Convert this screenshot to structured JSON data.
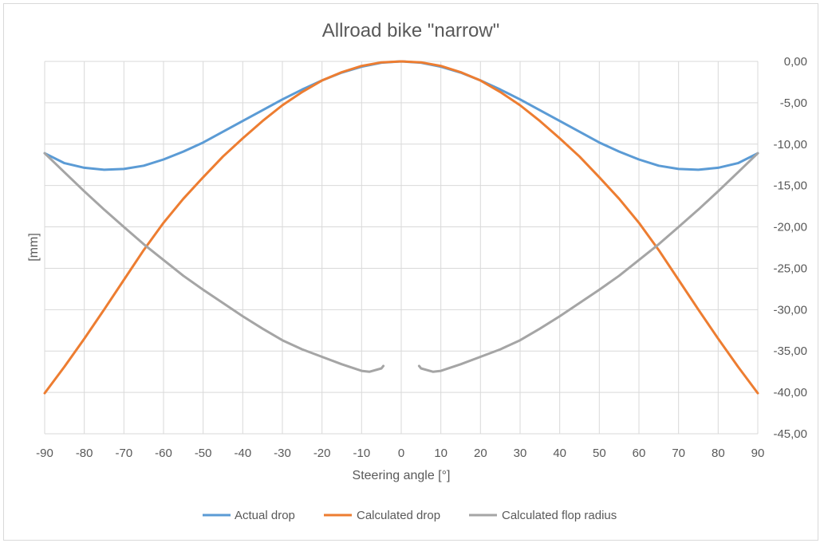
{
  "chart_data": {
    "type": "line",
    "title": "Allroad bike \"narrow\"",
    "xlabel": "Steering angle [°]",
    "ylabel": "[mm]",
    "xlim": [
      -90,
      90
    ],
    "ylim": [
      -45,
      0
    ],
    "x_ticks": [
      "-90",
      "-80",
      "-70",
      "-60",
      "-50",
      "-40",
      "-30",
      "-20",
      "-10",
      "0",
      "10",
      "20",
      "30",
      "40",
      "50",
      "60",
      "70",
      "80",
      "90"
    ],
    "y_ticks": [
      "0,00",
      "-5,00",
      "-10,00",
      "-15,00",
      "-20,00",
      "-25,00",
      "-30,00",
      "-35,00",
      "-40,00",
      "-45,00"
    ],
    "y_axis_side": "right",
    "grid": true,
    "legend_position": "bottom",
    "series": [
      {
        "name": "Actual drop",
        "color": "#5b9bd5",
        "points": [
          [
            -90,
            -11.1
          ],
          [
            -85,
            -12.3
          ],
          [
            -80,
            -12.85
          ],
          [
            -75,
            -13.1
          ],
          [
            -70,
            -13.0
          ],
          [
            -65,
            -12.6
          ],
          [
            -60,
            -11.85
          ],
          [
            -55,
            -10.9
          ],
          [
            -50,
            -9.8
          ],
          [
            -45,
            -8.5
          ],
          [
            -40,
            -7.2
          ],
          [
            -35,
            -5.9
          ],
          [
            -30,
            -4.6
          ],
          [
            -25,
            -3.4
          ],
          [
            -20,
            -2.3
          ],
          [
            -15,
            -1.35
          ],
          [
            -10,
            -0.65
          ],
          [
            -5,
            -0.15
          ],
          [
            0,
            0
          ],
          [
            5,
            -0.15
          ],
          [
            10,
            -0.65
          ],
          [
            15,
            -1.35
          ],
          [
            20,
            -2.3
          ],
          [
            25,
            -3.4
          ],
          [
            30,
            -4.6
          ],
          [
            35,
            -5.9
          ],
          [
            40,
            -7.2
          ],
          [
            45,
            -8.5
          ],
          [
            50,
            -9.8
          ],
          [
            55,
            -10.9
          ],
          [
            60,
            -11.85
          ],
          [
            65,
            -12.6
          ],
          [
            70,
            -13.0
          ],
          [
            75,
            -13.1
          ],
          [
            80,
            -12.85
          ],
          [
            85,
            -12.3
          ],
          [
            90,
            -11.1
          ]
        ]
      },
      {
        "name": "Calculated drop",
        "color": "#ed7d31",
        "points": [
          [
            -90,
            -40.1
          ],
          [
            -85,
            -36.9
          ],
          [
            -80,
            -33.5
          ],
          [
            -75,
            -30.0
          ],
          [
            -70,
            -26.4
          ],
          [
            -65,
            -22.8
          ],
          [
            -60,
            -19.5
          ],
          [
            -55,
            -16.6
          ],
          [
            -50,
            -14.0
          ],
          [
            -45,
            -11.5
          ],
          [
            -40,
            -9.3
          ],
          [
            -35,
            -7.2
          ],
          [
            -30,
            -5.3
          ],
          [
            -25,
            -3.7
          ],
          [
            -20,
            -2.3
          ],
          [
            -15,
            -1.3
          ],
          [
            -10,
            -0.55
          ],
          [
            -5,
            -0.12
          ],
          [
            0,
            0
          ],
          [
            5,
            -0.12
          ],
          [
            10,
            -0.55
          ],
          [
            15,
            -1.3
          ],
          [
            20,
            -2.3
          ],
          [
            25,
            -3.7
          ],
          [
            30,
            -5.3
          ],
          [
            35,
            -7.2
          ],
          [
            40,
            -9.3
          ],
          [
            45,
            -11.5
          ],
          [
            50,
            -14.0
          ],
          [
            55,
            -16.6
          ],
          [
            60,
            -19.5
          ],
          [
            65,
            -22.8
          ],
          [
            70,
            -26.4
          ],
          [
            75,
            -30.0
          ],
          [
            80,
            -33.5
          ],
          [
            85,
            -36.9
          ],
          [
            90,
            -40.1
          ]
        ]
      },
      {
        "name": "Calculated flop radius",
        "color": "#a5a5a5",
        "segments": [
          [
            [
              -90,
              -11.1
            ],
            [
              -85,
              -13.4
            ],
            [
              -80,
              -15.7
            ],
            [
              -75,
              -17.9
            ],
            [
              -70,
              -20.0
            ],
            [
              -65,
              -22.1
            ],
            [
              -60,
              -24.0
            ],
            [
              -55,
              -25.9
            ],
            [
              -50,
              -27.6
            ],
            [
              -45,
              -29.2
            ],
            [
              -40,
              -30.8
            ],
            [
              -35,
              -32.3
            ],
            [
              -30,
              -33.7
            ],
            [
              -25,
              -34.8
            ],
            [
              -20,
              -35.7
            ],
            [
              -15,
              -36.6
            ],
            [
              -10,
              -37.4
            ],
            [
              -8,
              -37.5
            ],
            [
              -5,
              -37.1
            ],
            [
              -4.5,
              -36.8
            ]
          ],
          [
            [
              4.5,
              -36.8
            ],
            [
              5,
              -37.1
            ],
            [
              8,
              -37.5
            ],
            [
              10,
              -37.4
            ],
            [
              15,
              -36.6
            ],
            [
              20,
              -35.7
            ],
            [
              25,
              -34.8
            ],
            [
              30,
              -33.7
            ],
            [
              35,
              -32.3
            ],
            [
              40,
              -30.8
            ],
            [
              45,
              -29.2
            ],
            [
              50,
              -27.6
            ],
            [
              55,
              -25.9
            ],
            [
              60,
              -24.0
            ],
            [
              65,
              -22.1
            ],
            [
              70,
              -20.0
            ],
            [
              75,
              -17.9
            ],
            [
              80,
              -15.7
            ],
            [
              85,
              -13.4
            ],
            [
              90,
              -11.1
            ]
          ]
        ]
      }
    ]
  }
}
